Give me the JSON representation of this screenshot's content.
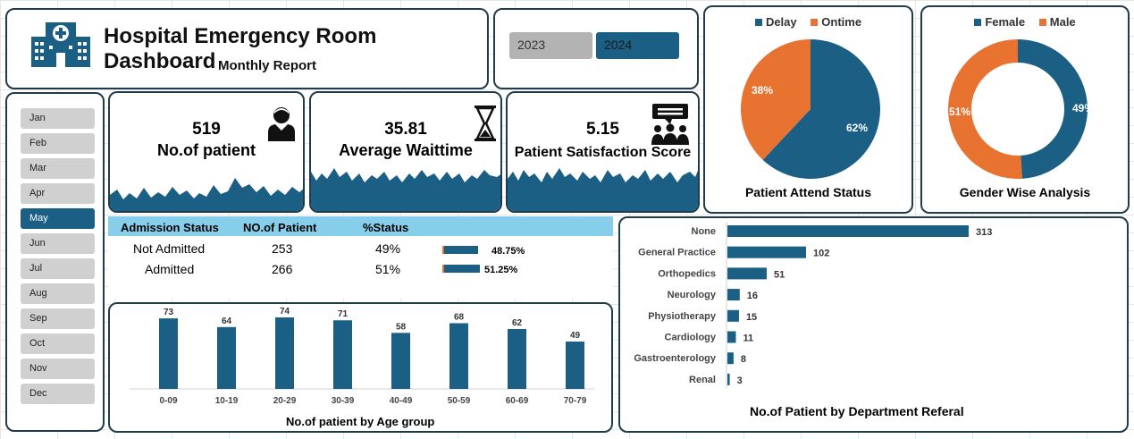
{
  "header": {
    "title": "Hospital Emergency Room Dashboard",
    "subtitle": "Monthly Report"
  },
  "years": [
    "2023",
    "2024"
  ],
  "selected_year": "2024",
  "months": [
    "Jan",
    "Feb",
    "Mar",
    "Apr",
    "May",
    "Jun",
    "Jul",
    "Aug",
    "Sep",
    "Oct",
    "Nov",
    "Dec"
  ],
  "selected_month": "May",
  "kpis": {
    "patients": {
      "value": "519",
      "label": "No.of patient",
      "icon": "patient-icon"
    },
    "wait": {
      "value": "35.81",
      "label": "Average Waittime",
      "icon": "hourglass-icon"
    },
    "satisfaction": {
      "value": "5.15",
      "label": "Patient Satisfaction Score",
      "icon": "group-chat-icon"
    }
  },
  "admission": {
    "headers": [
      "Admission Status",
      "NO.of Patient",
      "%Status"
    ],
    "rows": [
      {
        "status": "Not Admitted",
        "count": "253",
        "pct": "49%",
        "bar_label": "48.75%",
        "bar_value": 48.75
      },
      {
        "status": "Admitted",
        "count": "266",
        "pct": "51%",
        "bar_label": "51.25%",
        "bar_value": 51.25
      }
    ]
  },
  "colors": {
    "primary": "#1b5f85",
    "orange": "#e87331",
    "header_blue": "#87ceeb",
    "border": "#1f3b4d"
  },
  "chart_data": [
    {
      "type": "pie",
      "title": "Patient Attend Status",
      "legend": "top",
      "slices": [
        {
          "name": "Delay",
          "value": 62,
          "label": "62%",
          "color": "#1b5f85"
        },
        {
          "name": "Ontime",
          "value": 38,
          "label": "38%",
          "color": "#e87331"
        }
      ]
    },
    {
      "type": "pie",
      "title": "Gender Wise Analysis",
      "legend": "top",
      "donut": true,
      "slices": [
        {
          "name": "Female",
          "value": 49,
          "label": "49%",
          "color": "#1b5f85"
        },
        {
          "name": "Male",
          "value": 51,
          "label": "51%",
          "color": "#e87331"
        }
      ]
    },
    {
      "type": "bar",
      "title": "No.of patient by Age group",
      "categories": [
        "0-09",
        "10-19",
        "20-29",
        "30-39",
        "40-49",
        "50-59",
        "60-69",
        "70-79"
      ],
      "values": [
        73,
        64,
        74,
        71,
        58,
        68,
        62,
        49
      ],
      "ylim": [
        0,
        74
      ]
    },
    {
      "type": "bar",
      "orientation": "horizontal",
      "title": "No.of Patient by Department Referal",
      "categories": [
        "None",
        "General Practice",
        "Orthopedics",
        "Neurology",
        "Physiotherapy",
        "Cardiology",
        "Gastroenterology",
        "Renal"
      ],
      "values": [
        313,
        102,
        51,
        16,
        15,
        11,
        8,
        3
      ],
      "xlim": [
        0,
        313
      ]
    }
  ]
}
